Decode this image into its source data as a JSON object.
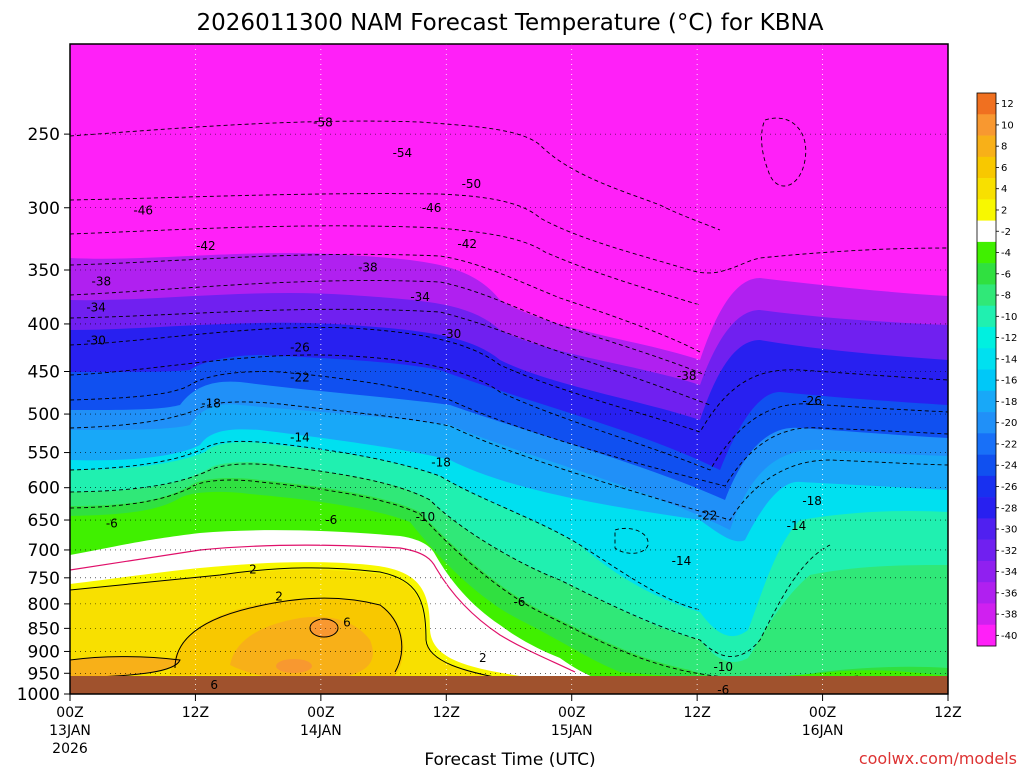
{
  "title": "2026011300 NAM Forecast Temperature (°C) for KBNA",
  "xlabel": "Forecast Time (UTC)",
  "credit": "coolwx.com/models",
  "chart_data": {
    "type": "heatmap",
    "title": "2026011300 NAM Forecast Temperature (°C) for KBNA",
    "xlabel": "Forecast Time (UTC)",
    "ylabel": "",
    "x_ticks": [
      {
        "lines": [
          "00Z",
          "13JAN",
          "2026"
        ],
        "hours": 0
      },
      {
        "lines": [
          "12Z"
        ],
        "hours": 12
      },
      {
        "lines": [
          "00Z",
          "14JAN"
        ],
        "hours": 24
      },
      {
        "lines": [
          "12Z"
        ],
        "hours": 36
      },
      {
        "lines": [
          "00Z",
          "15JAN"
        ],
        "hours": 48
      },
      {
        "lines": [
          "12Z"
        ],
        "hours": 60
      },
      {
        "lines": [
          "00Z",
          "16JAN"
        ],
        "hours": 72
      },
      {
        "lines": [
          "12Z"
        ],
        "hours": 84
      }
    ],
    "y_ticks": [
      250,
      300,
      350,
      400,
      450,
      500,
      550,
      600,
      650,
      700,
      750,
      800,
      850,
      900,
      950,
      1000
    ],
    "y_log_scale": true,
    "y_inverted": true,
    "xlim": [
      0,
      84
    ],
    "ylim": [
      1000,
      200
    ],
    "grid": true,
    "legend": "colorbar-right",
    "colorbar": {
      "labels": [
        12,
        10,
        8,
        6,
        4,
        2,
        -2,
        -4,
        -6,
        -8,
        -10,
        -12,
        -14,
        -16,
        -18,
        -20,
        -22,
        -24,
        -26,
        -28,
        -30,
        -32,
        -34,
        -36,
        -38,
        -40
      ],
      "colors": [
        "#f07020",
        "#f89830",
        "#f8b018",
        "#f8c800",
        "#f8e000",
        "#f8f800",
        "#ffffff",
        "#40f000",
        "#30e040",
        "#30e878",
        "#20f0b0",
        "#00f0e0",
        "#00e0f0",
        "#00c8f8",
        "#18a8f8",
        "#2090f8",
        "#1870f8",
        "#1050f0",
        "#1830f0",
        "#2820f0",
        "#5020f0",
        "#7020f0",
        "#9020f0",
        "#b020f0",
        "#d020f0",
        "#ff20f8"
      ]
    },
    "contour_labels": [
      {
        "text": "-58",
        "hours": 24.2,
        "hpa": 243
      },
      {
        "text": "-54",
        "hours": 31.8,
        "hpa": 262
      },
      {
        "text": "-50",
        "hours": 38.4,
        "hpa": 283
      },
      {
        "text": "-46",
        "hours": 7,
        "hpa": 302
      },
      {
        "text": "-46",
        "hours": 34.6,
        "hpa": 300
      },
      {
        "text": "-42",
        "hours": 13,
        "hpa": 330
      },
      {
        "text": "-42",
        "hours": 38,
        "hpa": 328
      },
      {
        "text": "-38",
        "hours": 3,
        "hpa": 360
      },
      {
        "text": "-38",
        "hours": 28.5,
        "hpa": 348
      },
      {
        "text": "-38",
        "hours": 59,
        "hpa": 455
      },
      {
        "text": "-34",
        "hours": 2.5,
        "hpa": 384
      },
      {
        "text": "-34",
        "hours": 33.5,
        "hpa": 374
      },
      {
        "text": "-30",
        "hours": 2.5,
        "hpa": 417
      },
      {
        "text": "-30",
        "hours": 36.5,
        "hpa": 410
      },
      {
        "text": "-26",
        "hours": 22,
        "hpa": 424
      },
      {
        "text": "-26",
        "hours": 71,
        "hpa": 484
      },
      {
        "text": "-22",
        "hours": 22,
        "hpa": 457
      },
      {
        "text": "-22",
        "hours": 61,
        "hpa": 643
      },
      {
        "text": "-18",
        "hours": 13.5,
        "hpa": 487
      },
      {
        "text": "-18",
        "hours": 35.5,
        "hpa": 564
      },
      {
        "text": "-18",
        "hours": 71,
        "hpa": 620
      },
      {
        "text": "-14",
        "hours": 22,
        "hpa": 530
      },
      {
        "text": "-14",
        "hours": 69.5,
        "hpa": 660
      },
      {
        "text": "-14",
        "hours": 58.5,
        "hpa": 719
      },
      {
        "text": "-10",
        "hours": 34,
        "hpa": 645
      },
      {
        "text": "-10",
        "hours": 62.5,
        "hpa": 935
      },
      {
        "text": "-6",
        "hours": 4,
        "hpa": 656
      },
      {
        "text": "-6",
        "hours": 25,
        "hpa": 650
      },
      {
        "text": "-6",
        "hours": 43,
        "hpa": 796
      },
      {
        "text": "-6",
        "hours": 62.5,
        "hpa": 990
      },
      {
        "text": "2",
        "hours": 17.5,
        "hpa": 735
      },
      {
        "text": "2",
        "hours": 20,
        "hpa": 786
      },
      {
        "text": "2",
        "hours": 39.5,
        "hpa": 915
      },
      {
        "text": "6",
        "hours": 26.5,
        "hpa": 838
      },
      {
        "text": "6",
        "hours": 13.8,
        "hpa": 978
      }
    ]
  }
}
